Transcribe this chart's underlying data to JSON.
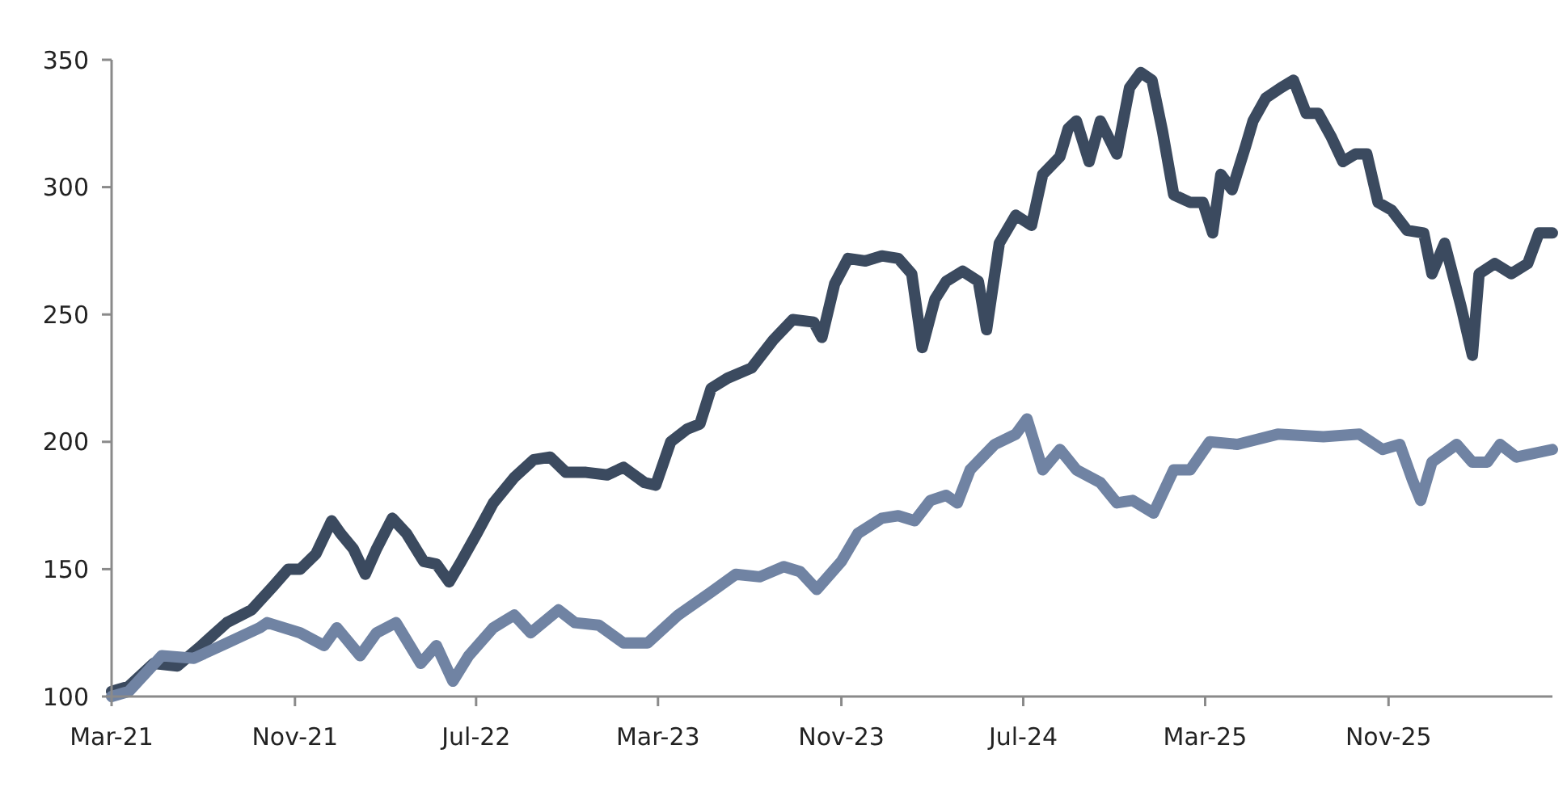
{
  "chart_data": {
    "type": "line",
    "xlim": [
      "2021-03-01",
      "2026-06-08"
    ],
    "ylim": [
      100,
      350
    ],
    "xticks": [
      {
        "value": "2021-03-01",
        "label": "Mar-21"
      },
      {
        "value": "2021-11-01",
        "label": "Nov-21"
      },
      {
        "value": "2022-07-01",
        "label": "Jul-22"
      },
      {
        "value": "2023-03-01",
        "label": "Mar-23"
      },
      {
        "value": "2023-11-01",
        "label": "Nov-23"
      },
      {
        "value": "2024-07-01",
        "label": "Jul-24"
      },
      {
        "value": "2025-03-01",
        "label": "Mar-25"
      },
      {
        "value": "2025-11-01",
        "label": "Nov-25"
      }
    ],
    "yticks": [
      100,
      150,
      200,
      250,
      300,
      350
    ],
    "series": [
      {
        "color": "#3b4a5f",
        "x": [
          "2021-03-01",
          "2021-03-24",
          "2021-04-26",
          "2021-05-28",
          "2021-06-29",
          "2021-08-02",
          "2021-09-04",
          "2021-10-02",
          "2021-10-23",
          "2021-11-08",
          "2021-11-29",
          "2021-12-20",
          "2022-01-01",
          "2022-01-18",
          "2022-02-03",
          "2022-02-18",
          "2022-03-11",
          "2022-03-30",
          "2022-04-22",
          "2022-05-09",
          "2022-05-26",
          "2022-06-11",
          "2022-07-02",
          "2022-07-24",
          "2022-08-21",
          "2022-09-16",
          "2022-10-08",
          "2022-10-29",
          "2022-11-25",
          "2022-12-23",
          "2023-01-14",
          "2023-02-11",
          "2023-02-26",
          "2023-03-18",
          "2023-04-09",
          "2023-04-26",
          "2023-05-11",
          "2023-06-02",
          "2023-07-04",
          "2023-08-02",
          "2023-08-28",
          "2023-09-25",
          "2023-10-06",
          "2023-10-23",
          "2023-11-10",
          "2023-12-03",
          "2023-12-25",
          "2024-01-16",
          "2024-02-03",
          "2024-02-17",
          "2024-03-05",
          "2024-03-20",
          "2024-04-11",
          "2024-05-02",
          "2024-05-13",
          "2024-05-30",
          "2024-06-21",
          "2024-07-12",
          "2024-07-27",
          "2024-08-19",
          "2024-08-30",
          "2024-09-10",
          "2024-09-27",
          "2024-10-12",
          "2024-11-03",
          "2024-11-20",
          "2024-12-05",
          "2024-12-20",
          "2025-01-03",
          "2025-01-18",
          "2025-02-09",
          "2025-02-26",
          "2025-03-11",
          "2025-03-22",
          "2025-04-06",
          "2025-04-24",
          "2025-05-04",
          "2025-05-21",
          "2025-06-10",
          "2025-06-27",
          "2025-07-14",
          "2025-07-30",
          "2025-08-16",
          "2025-09-01",
          "2025-09-18",
          "2025-10-03",
          "2025-10-18",
          "2025-11-05",
          "2025-11-26",
          "2025-12-18",
          "2025-12-29",
          "2026-01-15",
          "2026-02-06",
          "2026-02-21",
          "2026-03-02",
          "2026-03-23",
          "2026-04-14",
          "2026-05-06",
          "2026-05-21",
          "2026-06-08"
        ],
        "values": [
          102,
          104,
          113,
          112,
          120,
          129,
          134,
          143,
          150,
          150,
          156,
          169,
          164,
          158,
          148,
          158,
          170,
          164,
          153,
          152,
          145,
          153,
          164,
          176,
          186,
          193,
          194,
          188,
          188,
          187,
          190,
          184,
          183,
          200,
          205,
          207,
          221,
          225,
          229,
          240,
          248,
          247,
          241,
          262,
          272,
          271,
          273,
          272,
          266,
          237,
          256,
          263,
          267,
          263,
          244,
          278,
          289,
          285,
          305,
          312,
          323,
          326,
          310,
          326,
          313,
          339,
          345,
          342,
          322,
          297,
          294,
          294,
          282,
          305,
          299,
          316,
          326,
          335,
          339,
          342,
          329,
          329,
          320,
          310,
          313,
          313,
          294,
          291,
          283,
          282,
          266,
          278,
          253,
          234,
          266,
          270,
          266,
          270,
          282,
          282
        ]
      },
      {
        "color": "#7083a3",
        "x": [
          "2021-03-01",
          "2021-03-24",
          "2021-05-07",
          "2021-06-19",
          "2021-08-02",
          "2021-09-15",
          "2021-09-25",
          "2021-11-08",
          "2021-12-10",
          "2021-12-27",
          "2022-01-27",
          "2022-02-18",
          "2022-03-16",
          "2022-04-18",
          "2022-05-09",
          "2022-05-31",
          "2022-06-21",
          "2022-07-24",
          "2022-08-21",
          "2022-09-12",
          "2022-10-19",
          "2022-11-10",
          "2022-12-12",
          "2023-01-14",
          "2023-02-15",
          "2023-03-28",
          "2023-05-11",
          "2023-06-13",
          "2023-07-15",
          "2023-08-16",
          "2023-09-07",
          "2023-09-29",
          "2023-11-01",
          "2023-11-23",
          "2023-12-25",
          "2024-01-16",
          "2024-02-07",
          "2024-02-28",
          "2024-03-20",
          "2024-04-04",
          "2024-04-21",
          "2024-05-24",
          "2024-06-21",
          "2024-07-06",
          "2024-07-27",
          "2024-08-19",
          "2024-09-10",
          "2024-10-12",
          "2024-11-03",
          "2024-11-24",
          "2024-12-22",
          "2025-01-18",
          "2025-02-09",
          "2025-03-07",
          "2025-04-13",
          "2025-06-06",
          "2025-08-06",
          "2025-09-23",
          "2025-10-24",
          "2025-11-16",
          "2025-12-03",
          "2025-12-14",
          "2025-12-29",
          "2026-01-31",
          "2026-02-21",
          "2026-03-13",
          "2026-03-30",
          "2026-04-21",
          "2026-06-08"
        ],
        "values": [
          100,
          102,
          116,
          115,
          121,
          127,
          129,
          125,
          120,
          127,
          116,
          125,
          129,
          113,
          120,
          106,
          116,
          127,
          132,
          125,
          134,
          129,
          128,
          121,
          121,
          132,
          141,
          148,
          147,
          151,
          149,
          142,
          153,
          164,
          170,
          171,
          169,
          177,
          179,
          176,
          189,
          199,
          203,
          209,
          189,
          197,
          189,
          184,
          176,
          177,
          172,
          189,
          189,
          200,
          199,
          203,
          202,
          203,
          197,
          199,
          185,
          177,
          192,
          199,
          192,
          192,
          199,
          194,
          197
        ]
      }
    ]
  }
}
